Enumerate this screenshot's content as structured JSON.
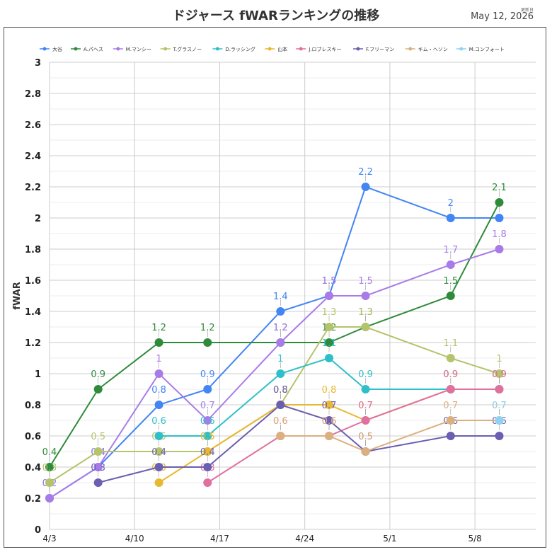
{
  "header": {
    "title": "ドジャース fWARランキングの推移",
    "updated_label": "更新日",
    "updated_date": "May 12, 2026"
  },
  "chart_data": {
    "type": "line",
    "title": "ドジャース fWARランキングの推移",
    "xlabel": "",
    "ylabel": "fWAR",
    "x": [
      "2026-04-03",
      "2026-04-07",
      "2026-04-12",
      "2026-04-16",
      "2026-04-22",
      "2026-04-26",
      "2026-04-29",
      "2026-05-06",
      "2026-05-10"
    ],
    "x_ticks": [
      "4/3",
      "4/10",
      "4/17",
      "4/24",
      "5/1",
      "5/8"
    ],
    "x_tick_dates": [
      "2026-04-03",
      "2026-04-10",
      "2026-04-17",
      "2026-04-24",
      "2026-05-01",
      "2026-05-08"
    ],
    "ylim": [
      0,
      3
    ],
    "y_ticks": [
      "0",
      "0.2",
      "0.4",
      "0.6",
      "0.8",
      "1",
      "1.2",
      "1.4",
      "1.6",
      "1.8",
      "2",
      "2.2",
      "2.4",
      "2.6",
      "2.8",
      "3"
    ],
    "grid": true,
    "legend_position": "top",
    "series": [
      {
        "name": "大谷",
        "color": "#4285f4",
        "values": [
          0.2,
          0.4,
          0.8,
          0.9,
          1.4,
          1.5,
          2.2,
          2.0,
          2.0
        ]
      },
      {
        "name": "A.パヘス",
        "color": "#2e8b3a",
        "values": [
          0.4,
          0.9,
          1.2,
          1.2,
          1.2,
          1.2,
          1.3,
          1.5,
          2.1
        ]
      },
      {
        "name": "M.マンシー",
        "color": "#a97be8",
        "values": [
          0.2,
          0.4,
          1.0,
          0.7,
          1.2,
          1.5,
          1.5,
          1.7,
          1.8
        ]
      },
      {
        "name": "T.グラスノー",
        "color": "#b5c46a",
        "values": [
          0.3,
          0.5,
          0.5,
          0.5,
          0.8,
          1.3,
          1.3,
          1.1,
          1.0
        ]
      },
      {
        "name": "D.ラッシング",
        "color": "#2fbfc9",
        "values": [
          null,
          null,
          0.6,
          0.6,
          1.0,
          1.1,
          0.9,
          0.9,
          0.9
        ]
      },
      {
        "name": "山本",
        "color": "#e8b830",
        "values": [
          null,
          null,
          0.3,
          0.5,
          0.8,
          0.8,
          0.7,
          0.9,
          0.9
        ]
      },
      {
        "name": "J.ロブレスキー",
        "color": "#e0709e",
        "values": [
          null,
          null,
          null,
          0.3,
          0.6,
          0.6,
          0.7,
          0.9,
          0.9
        ]
      },
      {
        "name": "F.フリーマン",
        "color": "#6a5fb0",
        "values": [
          null,
          0.3,
          0.4,
          0.4,
          0.8,
          0.7,
          0.5,
          0.6,
          0.6
        ]
      },
      {
        "name": "キム・ヘソン",
        "color": "#dbb07e",
        "values": [
          null,
          null,
          null,
          null,
          0.6,
          0.6,
          0.5,
          0.7,
          0.7
        ]
      },
      {
        "name": "M.コンフォート",
        "color": "#8fd3f2",
        "values": [
          null,
          null,
          null,
          null,
          null,
          null,
          null,
          null,
          0.7
        ]
      }
    ]
  }
}
